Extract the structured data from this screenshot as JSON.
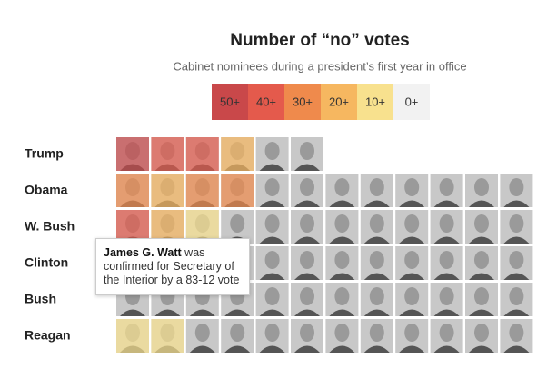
{
  "title": "Number of “no” votes",
  "subtitle": "Cabinet nominees during a president’s first year in office",
  "legend": [
    {
      "label": "50+",
      "color": "#c9484a"
    },
    {
      "label": "40+",
      "color": "#e45a4c"
    },
    {
      "label": "30+",
      "color": "#ef8a4c"
    },
    {
      "label": "20+",
      "color": "#f6b760"
    },
    {
      "label": "10+",
      "color": "#f8e18e"
    },
    {
      "label": "0+",
      "color": "#f2f2f2"
    }
  ],
  "rows": [
    {
      "name": "Trump",
      "cells": [
        0,
        1,
        1,
        3,
        5,
        5
      ]
    },
    {
      "name": "Obama",
      "cells": [
        2,
        3,
        2,
        2,
        5,
        5,
        5,
        5,
        5,
        5,
        5,
        5
      ]
    },
    {
      "name": "W. Bush",
      "cells": [
        1,
        3,
        4,
        5,
        5,
        5,
        5,
        5,
        5,
        5,
        5,
        5
      ]
    },
    {
      "name": "Clinton",
      "cells": [
        5,
        5,
        5,
        5,
        5,
        5,
        5,
        5,
        5,
        5,
        5,
        5
      ]
    },
    {
      "name": "Bush",
      "cells": [
        5,
        5,
        5,
        5,
        5,
        5,
        5,
        5,
        5,
        5,
        5,
        5
      ]
    },
    {
      "name": "Reagan",
      "cells": [
        4,
        4,
        5,
        5,
        5,
        5,
        5,
        5,
        5,
        5,
        5,
        5
      ]
    }
  ],
  "tooltip": {
    "name": "James G. Watt",
    "text": "was confirmed for Secretary of the Interior by a 83-12 vote"
  }
}
